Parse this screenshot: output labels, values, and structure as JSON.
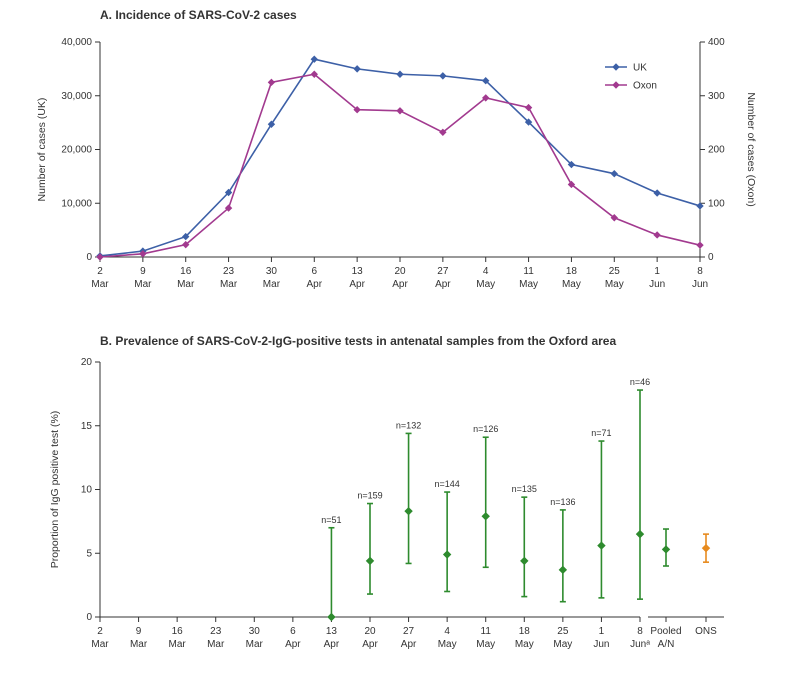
{
  "panelA": {
    "title": "A. Incidence of SARS-CoV-2 cases",
    "title_fontsize": 12,
    "type": "line",
    "background_color": "#ffffff",
    "x_labels_day": [
      "2",
      "9",
      "16",
      "23",
      "30",
      "6",
      "13",
      "20",
      "27",
      "4",
      "11",
      "18",
      "25",
      "1",
      "8"
    ],
    "x_labels_month": [
      "Mar",
      "Mar",
      "Mar",
      "Mar",
      "Mar",
      "Apr",
      "Apr",
      "Apr",
      "Apr",
      "May",
      "May",
      "May",
      "May",
      "Jun",
      "Jun"
    ],
    "label_fontsize": 10,
    "y_left": {
      "label": "Number of cases (UK)",
      "lim": [
        0,
        40000
      ],
      "tick_step": 10000,
      "tick_format": "comma"
    },
    "y_right": {
      "label": "Number of cases (Oxon)",
      "lim": [
        0,
        400
      ],
      "tick_step": 100
    },
    "series": [
      {
        "name": "UK",
        "axis": "left",
        "color": "#3d60a7",
        "marker": "diamond",
        "marker_size": 6,
        "line_width": 1.6,
        "values": [
          200,
          1100,
          3800,
          12000,
          24700,
          36800,
          35000,
          34000,
          33700,
          32800,
          25100,
          17200,
          15500,
          11900,
          9500
        ]
      },
      {
        "name": "Oxon",
        "axis": "right",
        "color": "#a23a8f",
        "marker": "diamond",
        "marker_size": 6,
        "line_width": 1.6,
        "values": [
          0,
          6,
          23,
          91,
          325,
          340,
          274,
          272,
          232,
          296,
          278,
          135,
          73,
          41,
          22
        ]
      }
    ],
    "legend": {
      "entries": [
        "UK",
        "Oxon"
      ],
      "position": "right"
    }
  },
  "panelB": {
    "title": "B. Prevalence of SARS-CoV-2-IgG-positive tests in antenatal samples from the Oxford area",
    "title_fontsize": 12,
    "type": "errorbar",
    "background_color": "#ffffff",
    "x_labels_day": [
      "2",
      "9",
      "16",
      "23",
      "30",
      "6",
      "13",
      "20",
      "27",
      "4",
      "11",
      "18",
      "25",
      "1",
      "8"
    ],
    "x_labels_month": [
      "Mar",
      "Mar",
      "Mar",
      "Mar",
      "Mar",
      "Apr",
      "Apr",
      "Apr",
      "Apr",
      "May",
      "May",
      "May",
      "May",
      "Jun",
      "Junᵃ"
    ],
    "label_fontsize": 10,
    "y": {
      "label": "Proportion of IgG positive test (%)",
      "lim": [
        0,
        20
      ],
      "tick_step": 5
    },
    "main_series": {
      "color": "#2e8b2e",
      "marker": "diamond",
      "marker_size": 7,
      "line_width": 1.6,
      "cap_width": 6,
      "points": [
        {
          "xi": 6,
          "n": 51,
          "y": 0.0,
          "lo": 0.0,
          "hi": 7.0
        },
        {
          "xi": 7,
          "n": 159,
          "y": 4.4,
          "lo": 1.8,
          "hi": 8.9
        },
        {
          "xi": 8,
          "n": 132,
          "y": 8.3,
          "lo": 4.2,
          "hi": 14.4
        },
        {
          "xi": 9,
          "n": 144,
          "y": 4.9,
          "lo": 2.0,
          "hi": 9.8
        },
        {
          "xi": 10,
          "n": 126,
          "y": 7.9,
          "lo": 3.9,
          "hi": 14.1
        },
        {
          "xi": 11,
          "n": 135,
          "y": 4.4,
          "lo": 1.6,
          "hi": 9.4
        },
        {
          "xi": 12,
          "n": 136,
          "y": 3.7,
          "lo": 1.2,
          "hi": 8.4
        },
        {
          "xi": 13,
          "n": 71,
          "y": 5.6,
          "lo": 1.5,
          "hi": 13.8
        },
        {
          "xi": 14,
          "n": 46,
          "y": 6.5,
          "lo": 1.4,
          "hi": 17.8
        }
      ]
    },
    "extra_series": [
      {
        "label_top": "Pooled",
        "label_bottom": "A/N",
        "color": "#2e8b2e",
        "marker": "diamond",
        "marker_size": 7,
        "line_width": 1.6,
        "cap_width": 6,
        "y": 5.3,
        "lo": 4.0,
        "hi": 6.9
      },
      {
        "label_top": "ONS",
        "label_bottom": "",
        "color": "#e78b1f",
        "marker": "diamond",
        "marker_size": 7,
        "line_width": 1.6,
        "cap_width": 6,
        "y": 5.4,
        "lo": 4.3,
        "hi": 6.5
      }
    ]
  }
}
